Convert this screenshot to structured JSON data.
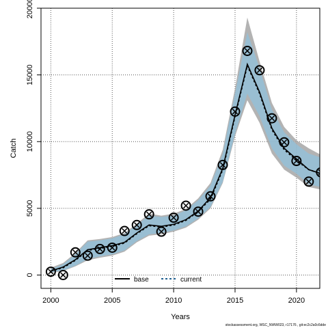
{
  "chart_data": {
    "type": "line",
    "title": "",
    "xlabel": "Years",
    "ylabel": "Catch",
    "xlim": [
      1999.2,
      2021.9
    ],
    "ylim": [
      -1000,
      20000
    ],
    "x_ticks": [
      2000,
      2005,
      2010,
      2015,
      2020
    ],
    "y_ticks": [
      0,
      5000,
      10000,
      15000,
      20000
    ],
    "grid": true,
    "legend_position": "bottom-center",
    "colors": {
      "base_band": "#a6a6a6",
      "current_band": "#87c4e6",
      "base_line": "#000000",
      "current_line": "#1f5f8f",
      "observed_points": "#000000"
    },
    "years": [
      2000,
      2001,
      2002,
      2003,
      2004,
      2005,
      2006,
      2007,
      2008,
      2009,
      2010,
      2011,
      2012,
      2013,
      2014,
      2015,
      2016,
      2017,
      2018,
      2019,
      2020,
      2021,
      2022
    ],
    "series": [
      {
        "name": "base",
        "style": "solid",
        "values": [
          300,
          600,
          1150,
          1900,
          2050,
          2200,
          2450,
          3150,
          3750,
          3650,
          3800,
          4150,
          4800,
          5800,
          8000,
          12000,
          15800,
          13700,
          11000,
          9500,
          8700,
          7900,
          7600
        ],
        "lower": [
          150,
          300,
          650,
          1100,
          1300,
          1450,
          1750,
          2450,
          2950,
          3050,
          3250,
          3550,
          4150,
          5000,
          6900,
          10400,
          13100,
          11400,
          9100,
          7900,
          7300,
          6600,
          6400
        ],
        "upper": [
          550,
          900,
          1650,
          2600,
          2700,
          2850,
          3150,
          3850,
          4600,
          4450,
          4600,
          4950,
          5750,
          6900,
          9400,
          14000,
          19300,
          16000,
          12900,
          11100,
          10100,
          9500,
          9000
        ]
      },
      {
        "name": "current",
        "style": "dashed",
        "values": [
          300,
          550,
          1100,
          1850,
          2000,
          2150,
          2400,
          3100,
          3700,
          3600,
          3750,
          4100,
          4750,
          5700,
          7900,
          11900,
          15700,
          13600,
          10900,
          9400,
          8600,
          7900,
          7600
        ],
        "lower": [
          200,
          350,
          700,
          1200,
          1400,
          1550,
          1850,
          2550,
          3050,
          3150,
          3350,
          3650,
          4250,
          5100,
          7000,
          10600,
          13600,
          11900,
          9500,
          8200,
          7600,
          6800,
          6600
        ],
        "upper": [
          450,
          800,
          1550,
          2500,
          2600,
          2750,
          3050,
          3750,
          4450,
          4350,
          4450,
          4850,
          5600,
          6700,
          9100,
          13600,
          18200,
          15500,
          12400,
          10700,
          9800,
          9100,
          8800
        ]
      }
    ],
    "observed": {
      "years": [
        2000,
        2001,
        2002,
        2003,
        2004,
        2005,
        2006,
        2007,
        2008,
        2009,
        2010,
        2011,
        2012,
        2013,
        2014,
        2015,
        2016,
        2017,
        2018,
        2019,
        2020,
        2021,
        2022
      ],
      "values": [
        250,
        0,
        1700,
        1450,
        1950,
        2050,
        3300,
        3750,
        4550,
        3250,
        4300,
        5200,
        4750,
        5900,
        8250,
        12250,
        16800,
        15350,
        11750,
        9950,
        8550,
        7000,
        7700
      ]
    }
  },
  "watermark": "stockassessment.org, WSC_NWW023, r17176 , git:ec2c2a0c6dde"
}
